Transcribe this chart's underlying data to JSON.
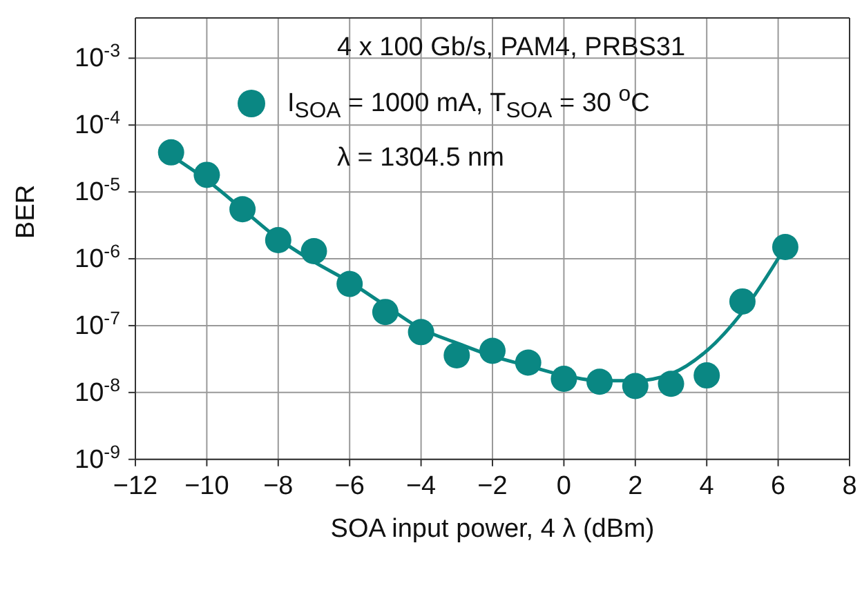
{
  "chart_data": {
    "type": "scatter",
    "xlabel": "SOA input power, 4 λ (dBm)",
    "ylabel": "BER",
    "annotations": [
      "4 x 100 Gb/s, PAM4, PRBS31",
      "λ = 1304.5 nm"
    ],
    "series": [
      {
        "type": "scatter",
        "name": "I$_{SOA}$ = 1000 mA, T$_{SOA}$ = 30 $^{o}$C",
        "color": "#0a8783",
        "marker": "circle",
        "x": [
          -11,
          -10,
          -9,
          -8,
          -7,
          -6,
          -5,
          -4,
          -3,
          -2,
          -1,
          0,
          1,
          2,
          3,
          4,
          5,
          6.2
        ],
        "values": [
          3.9e-05,
          1.8e-05,
          5.5e-06,
          1.9e-06,
          1.3e-06,
          4.2e-07,
          1.6e-07,
          8e-08,
          3.6e-08,
          4.2e-08,
          2.8e-08,
          1.6e-08,
          1.45e-08,
          1.25e-08,
          1.35e-08,
          1.8e-08,
          2.3e-07,
          1.5e-06
        ]
      },
      {
        "type": "line",
        "color": "#0a8783",
        "marker": "none",
        "x": [
          -11,
          -10,
          -9,
          -8,
          -7,
          -6,
          -5,
          -4,
          -3,
          -2,
          -1,
          0,
          1,
          2,
          3,
          4,
          5,
          6.2
        ],
        "values": [
          3.5e-05,
          1.5e-05,
          5.5e-06,
          2e-06,
          9e-07,
          4.5e-07,
          2e-07,
          9e-08,
          5.5e-08,
          3.5e-08,
          2.5e-08,
          1.8e-08,
          1.5e-08,
          1.5e-08,
          1.9e-08,
          4.2e-08,
          1.6e-07,
          1.5e-06
        ]
      }
    ],
    "xlim": [
      -12,
      8
    ],
    "xticks": [
      -12,
      -10,
      -8,
      -6,
      -4,
      -2,
      0,
      2,
      4,
      6,
      8
    ],
    "ylim": [
      1e-09,
      0.004
    ],
    "yticks": [
      {
        "value": 1e-09,
        "label": "10$^{-9}$"
      },
      {
        "value": 1e-08,
        "label": "10$^{-8}$"
      },
      {
        "value": 1e-07,
        "label": "10$^{-7}$"
      },
      {
        "value": 1e-06,
        "label": "10$^{-6}$"
      },
      {
        "value": 1e-05,
        "label": "10$^{-5}$"
      },
      {
        "value": 0.0001,
        "label": "10$^{-4}$"
      },
      {
        "value": 0.001,
        "label": "10$^{-3}$"
      }
    ],
    "log": true,
    "grid": true,
    "legend": "top"
  }
}
